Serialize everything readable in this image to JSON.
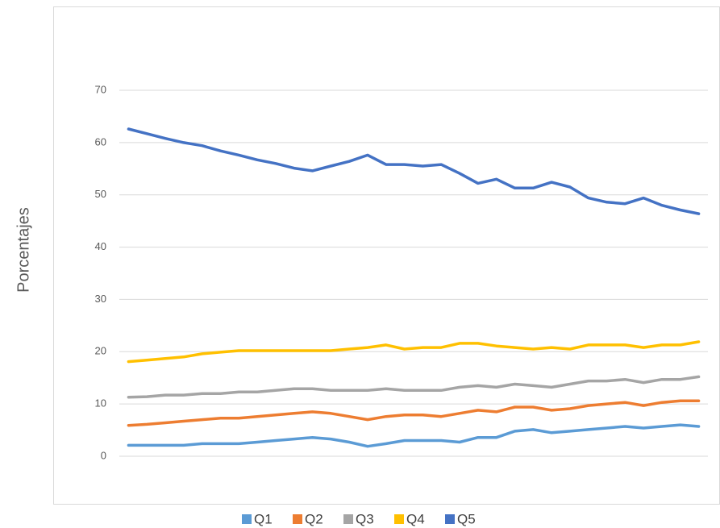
{
  "chart_data": {
    "type": "line",
    "y_label": "Porcentajes",
    "categories": [
      null,
      null,
      null,
      null,
      null,
      null,
      null,
      null,
      null,
      null,
      null,
      null,
      null,
      null,
      null,
      null,
      null,
      null,
      null,
      null,
      null,
      null,
      null,
      null,
      null,
      null,
      null,
      null,
      null,
      null,
      null,
      null
    ],
    "series": [
      {
        "name": "Q1",
        "color": "#5b9bd5",
        "values": [
          2.1,
          2.1,
          2.1,
          2.1,
          2.4,
          2.4,
          2.4,
          2.7,
          3,
          3.3,
          3.6,
          3.3,
          2.7,
          1.9,
          2.4,
          3,
          3,
          3,
          2.7,
          3.6,
          3.6,
          4.8,
          5.1,
          4.5,
          4.8,
          5.1,
          5.4,
          5.7,
          5.4,
          5.7,
          6,
          5.7
        ]
      },
      {
        "name": "Q2",
        "color": "#ed7d31",
        "values": [
          5.9,
          6.1,
          6.4,
          6.7,
          7,
          7.3,
          7.3,
          7.6,
          7.9,
          8.2,
          8.5,
          8.2,
          7.6,
          7,
          7.6,
          7.9,
          7.9,
          7.6,
          8.2,
          8.8,
          8.5,
          9.4,
          9.4,
          8.8,
          9.1,
          9.7,
          10,
          10.3,
          9.7,
          10.3,
          10.6,
          10.6
        ]
      },
      {
        "name": "Q3",
        "color": "#a5a5a5",
        "values": [
          11.3,
          11.4,
          11.7,
          11.7,
          12,
          12,
          12.3,
          12.3,
          12.6,
          12.9,
          12.9,
          12.6,
          12.6,
          12.6,
          12.9,
          12.6,
          12.6,
          12.6,
          13.2,
          13.5,
          13.2,
          13.8,
          13.5,
          13.2,
          13.8,
          14.4,
          14.4,
          14.7,
          14.1,
          14.7,
          14.7,
          15.2
        ]
      },
      {
        "name": "Q4",
        "color": "#ffc000",
        "values": [
          18.1,
          18.4,
          18.7,
          19,
          19.6,
          19.9,
          20.2,
          20.2,
          20.2,
          20.2,
          20.2,
          20.2,
          20.5,
          20.8,
          21.3,
          20.5,
          20.8,
          20.8,
          21.6,
          21.6,
          21.1,
          20.8,
          20.5,
          20.8,
          20.5,
          21.3,
          21.3,
          21.3,
          20.8,
          21.3,
          21.3,
          21.9
        ]
      },
      {
        "name": "Q5",
        "color": "#4472c4",
        "values": [
          62.6,
          61.7,
          60.8,
          60,
          59.4,
          58.4,
          57.6,
          56.7,
          56,
          55.1,
          54.6,
          55.5,
          56.4,
          57.6,
          55.8,
          55.8,
          55.5,
          55.8,
          54.1,
          52.2,
          53,
          51.3,
          51.3,
          52.4,
          51.5,
          49.4,
          48.6,
          48.3,
          49.4,
          48,
          47.1,
          46.4
        ]
      }
    ],
    "ylim": [
      0,
      70
    ],
    "yticks": [
      0,
      10,
      20,
      30,
      40,
      50,
      60,
      70
    ],
    "grid": true,
    "legend": "bottom"
  }
}
